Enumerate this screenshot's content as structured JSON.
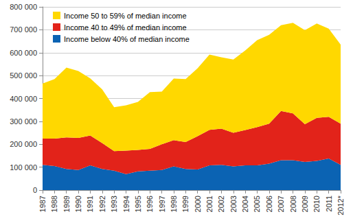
{
  "chart_data": {
    "type": "area",
    "stacked": true,
    "grid": true,
    "legend": "upper left",
    "categories": [
      "1987",
      "1988",
      "1989",
      "1990",
      "1991",
      "1992",
      "1993",
      "1994",
      "1995",
      "1996",
      "1997",
      "1998",
      "1999",
      "2000",
      "2001",
      "2002",
      "2003",
      "2004",
      "2005",
      "2006",
      "2007",
      "2008",
      "2009",
      "2010",
      "2011",
      "2012*"
    ],
    "series": [
      {
        "name": "Income below 40% of median income",
        "color": "#0b63b3",
        "values": [
          110000,
          105000,
          92000,
          88000,
          108000,
          92000,
          85000,
          70000,
          82000,
          85000,
          88000,
          103000,
          92000,
          90000,
          108000,
          110000,
          103000,
          108000,
          108000,
          115000,
          130000,
          130000,
          123000,
          127000,
          138000,
          110000
        ]
      },
      {
        "name": "Income 40 to 49% of median income",
        "color": "#e2231a",
        "values": [
          115000,
          120000,
          138000,
          140000,
          130000,
          113000,
          85000,
          102000,
          93000,
          95000,
          112000,
          115000,
          118000,
          145000,
          155000,
          158000,
          147000,
          154000,
          167000,
          175000,
          215000,
          205000,
          165000,
          188000,
          182000,
          180000
        ]
      },
      {
        "name": "Income 50 to 59% of median income",
        "color": "#ffd800",
        "values": [
          240000,
          260000,
          305000,
          292000,
          250000,
          235000,
          192000,
          198000,
          210000,
          248000,
          230000,
          269000,
          275000,
          297000,
          329000,
          312000,
          320000,
          348000,
          380000,
          388000,
          375000,
          395000,
          410000,
          412000,
          385000,
          345000
        ]
      }
    ],
    "ylim": [
      0,
      800000
    ],
    "yticks": [
      0,
      {
        "value": 100000,
        "label": "100 000"
      },
      {
        "value": 200000,
        "label": "200 000"
      },
      {
        "value": 300000,
        "label": "300 000"
      },
      {
        "value": 400000,
        "label": "400 000"
      },
      {
        "value": 500000,
        "label": "500 000"
      },
      {
        "value": 600000,
        "label": "600 000"
      },
      {
        "value": 700000,
        "label": "700 000"
      },
      {
        "value": 800000,
        "label": "800 000"
      }
    ]
  }
}
